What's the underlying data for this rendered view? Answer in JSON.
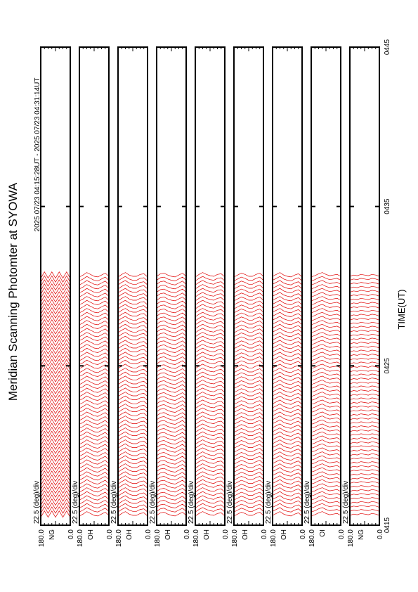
{
  "chart_data": {
    "type": "scanplot",
    "title": "Meridian Scanning Photomter at SYOWA",
    "subtitle": "2025 07/23 04:15:28UT - 2025 07/23 04:31:14UT",
    "x_label": "TIME(UT)",
    "xlim": [
      15,
      45
    ],
    "xticks": [
      {
        "value": 15,
        "label": "0415"
      },
      {
        "value": 25,
        "label": "0425"
      },
      {
        "value": 35,
        "label": "0435"
      },
      {
        "value": 45,
        "label": "0445"
      }
    ],
    "color": "#e00000",
    "scan_times": [
      15.5,
      15.75,
      16,
      16.25,
      16.5,
      16.75,
      17,
      17.25,
      17.5,
      17.75,
      18,
      18.25,
      18.5,
      18.75,
      19,
      19.25,
      19.5,
      19.75,
      20,
      20.25,
      20.5,
      20.75,
      21,
      21.25,
      21.5,
      21.75,
      22,
      22.25,
      22.5,
      22.75,
      23,
      23.25,
      23.5,
      23.75,
      24,
      24.25,
      24.5,
      24.75,
      25,
      25.25,
      25.5,
      25.75,
      26,
      26.25,
      26.5,
      26.75,
      27,
      27.25,
      27.5,
      27.75,
      28,
      28.25,
      28.5,
      28.75,
      29,
      29.25,
      29.5,
      29.75,
      30,
      30.25,
      30.5
    ],
    "panels": [
      {
        "channel": "NG",
        "scale_label": "22.5 (deg)/div",
        "elev_max": "180.0",
        "elev_min": "0.0",
        "profile": [
          0,
          1,
          0,
          1,
          0,
          1,
          0,
          1,
          0
        ]
      },
      {
        "channel": "OH",
        "scale_label": "22.5 (deg)/div",
        "elev_max": "180.0",
        "elev_min": "0.0",
        "profile": [
          0.2,
          0.5,
          0.9,
          0.6,
          0.3,
          0.2,
          0.5,
          0.8,
          0.3
        ]
      },
      {
        "channel": "OH",
        "scale_label": "22.5 (deg)/div",
        "elev_max": "180.0",
        "elev_min": "0.0",
        "profile": [
          0.2,
          0.6,
          0.9,
          0.5,
          0.3,
          0.3,
          0.6,
          0.7,
          0.2
        ]
      },
      {
        "channel": "OH",
        "scale_label": "22.5 (deg)/div",
        "elev_max": "180.0",
        "elev_min": "0.0",
        "profile": [
          0.3,
          0.7,
          0.8,
          0.5,
          0.3,
          0.2,
          0.5,
          0.8,
          0.3
        ]
      },
      {
        "channel": "OH",
        "scale_label": "22.5 (deg)/div",
        "elev_max": "180.0",
        "elev_min": "0.0",
        "profile": [
          0.2,
          0.6,
          0.9,
          0.6,
          0.4,
          0.3,
          0.6,
          0.7,
          0.2
        ]
      },
      {
        "channel": "OH",
        "scale_label": "22.5 (deg)/div",
        "elev_max": "180.0",
        "elev_min": "0.0",
        "profile": [
          0.2,
          0.5,
          0.8,
          0.6,
          0.3,
          0.3,
          0.6,
          0.8,
          0.3
        ]
      },
      {
        "channel": "OH",
        "scale_label": "22.5 (deg)/div",
        "elev_max": "180.0",
        "elev_min": "0.0",
        "profile": [
          0.3,
          0.6,
          0.9,
          0.5,
          0.3,
          0.2,
          0.5,
          0.7,
          0.2
        ]
      },
      {
        "channel": "OI",
        "scale_label": "22.5 (deg)/div",
        "elev_max": "180.0",
        "elev_min": "0.0",
        "profile": [
          0.2,
          0.4,
          0.7,
          0.9,
          0.6,
          0.4,
          0.5,
          0.6,
          0.3
        ]
      },
      {
        "channel": "NG",
        "scale_label": "22.5 (deg)/div",
        "elev_max": "180.0",
        "elev_min": "0.0",
        "profile": [
          0.3,
          0.5,
          0.4,
          0.6,
          0.5,
          0.4,
          0.6,
          0.5,
          0.3
        ]
      }
    ]
  }
}
